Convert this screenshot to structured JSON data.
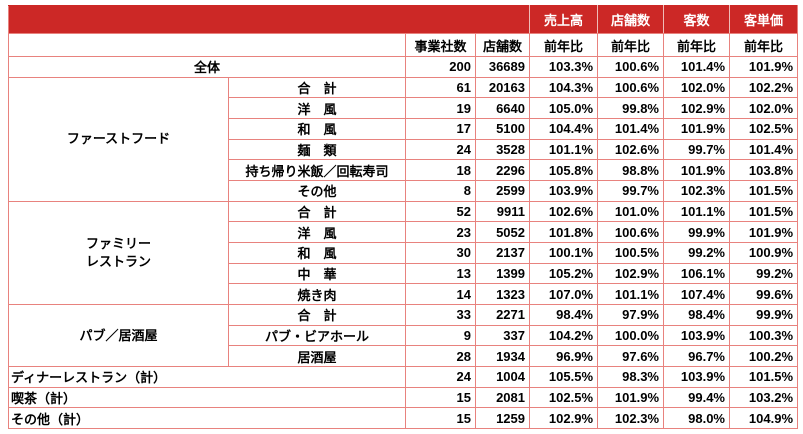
{
  "theme": {
    "header_bg": "#CC2826",
    "header_text": "#FFFFFF",
    "grid_color": "#E8827E",
    "text_color": "#000000",
    "page_bg": "#FFFFFF"
  },
  "table": {
    "header_top": {
      "sales": "売上高",
      "stores": "店舗数",
      "customers": "客数",
      "unit_price": "客単価"
    },
    "header_sub": {
      "companies": "事業社数",
      "stores": "店舗数",
      "yoy": "前年比"
    },
    "rows": [
      {
        "kind": "total",
        "label": "全体",
        "values": [
          "200",
          "36689",
          "103.3%",
          "100.6%",
          "101.4%",
          "101.9%"
        ]
      },
      {
        "kind": "group",
        "group": "ファーストフード",
        "rowspan": 6,
        "sub": "合　計",
        "values": [
          "61",
          "20163",
          "104.3%",
          "100.6%",
          "102.0%",
          "102.2%"
        ]
      },
      {
        "kind": "sub",
        "sub": "洋　風",
        "values": [
          "19",
          "6640",
          "105.0%",
          "99.8%",
          "102.9%",
          "102.0%"
        ]
      },
      {
        "kind": "sub",
        "sub": "和　風",
        "values": [
          "17",
          "5100",
          "104.4%",
          "101.4%",
          "101.9%",
          "102.5%"
        ]
      },
      {
        "kind": "sub",
        "sub": "麺　類",
        "values": [
          "24",
          "3528",
          "101.1%",
          "102.6%",
          "99.7%",
          "101.4%"
        ]
      },
      {
        "kind": "sub",
        "sub": "持ち帰り米飯／回転寿司",
        "values": [
          "18",
          "2296",
          "105.8%",
          "98.8%",
          "101.9%",
          "103.8%"
        ]
      },
      {
        "kind": "sub",
        "sub": "その他",
        "values": [
          "8",
          "2599",
          "103.9%",
          "99.7%",
          "102.3%",
          "101.5%"
        ]
      },
      {
        "kind": "group",
        "group": "ファミリー\nレストラン",
        "rowspan": 5,
        "sub": "合　計",
        "values": [
          "52",
          "9911",
          "102.6%",
          "101.0%",
          "101.1%",
          "101.5%"
        ]
      },
      {
        "kind": "sub",
        "sub": "洋　風",
        "values": [
          "23",
          "5052",
          "101.8%",
          "100.6%",
          "99.9%",
          "101.9%"
        ]
      },
      {
        "kind": "sub",
        "sub": "和　風",
        "values": [
          "30",
          "2137",
          "100.1%",
          "100.5%",
          "99.2%",
          "100.9%"
        ]
      },
      {
        "kind": "sub",
        "sub": "中　華",
        "values": [
          "13",
          "1399",
          "105.2%",
          "102.9%",
          "106.1%",
          "99.2%"
        ]
      },
      {
        "kind": "sub",
        "sub": "焼き肉",
        "values": [
          "14",
          "1323",
          "107.0%",
          "101.1%",
          "107.4%",
          "99.6%"
        ]
      },
      {
        "kind": "group",
        "group": "パブ／居酒屋",
        "rowspan": 3,
        "sub": "合　計",
        "values": [
          "33",
          "2271",
          "98.4%",
          "97.9%",
          "98.4%",
          "99.9%"
        ]
      },
      {
        "kind": "sub",
        "sub": "パブ・ビアホール",
        "values": [
          "9",
          "337",
          "104.2%",
          "100.0%",
          "103.9%",
          "100.3%"
        ]
      },
      {
        "kind": "sub",
        "sub": "居酒屋",
        "values": [
          "28",
          "1934",
          "96.9%",
          "97.6%",
          "96.7%",
          "100.2%"
        ]
      },
      {
        "kind": "span",
        "label": "ディナーレストラン（計）",
        "values": [
          "24",
          "1004",
          "105.5%",
          "98.3%",
          "103.9%",
          "101.5%"
        ]
      },
      {
        "kind": "span",
        "label": "喫茶（計）",
        "values": [
          "15",
          "2081",
          "102.5%",
          "101.9%",
          "99.4%",
          "103.2%"
        ]
      },
      {
        "kind": "span",
        "label": "その他（計）",
        "values": [
          "15",
          "1259",
          "102.9%",
          "102.3%",
          "98.0%",
          "104.9%"
        ]
      }
    ]
  }
}
